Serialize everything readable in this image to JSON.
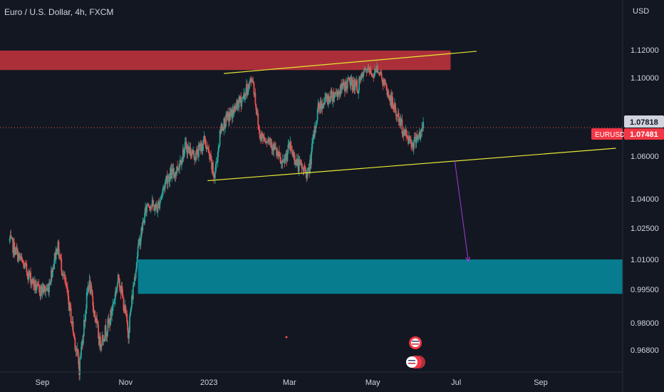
{
  "chart_data": {
    "type": "candlestick",
    "title": "Euro / U.S. Dollar, 4h, FXCM",
    "currency": "USD",
    "symbol": "EURUSD",
    "price_current": "1.07481",
    "price_prev": "1.07818",
    "y_ticks": [
      "1.12000",
      "1.10000",
      "1.06000",
      "1.04000",
      "1.02500",
      "1.01000",
      "0.99500",
      "0.98000",
      "0.96800"
    ],
    "x_ticks": [
      "Sep",
      "Nov",
      "2023",
      "Mar",
      "May",
      "Jul",
      "Sep"
    ],
    "ylim": [
      0.955,
      1.13
    ],
    "colors": {
      "up": "#26a69a",
      "down": "#ef5350",
      "resistance": "#b2303a",
      "target": "#087c8f",
      "trendline": "#e5e833",
      "arrow": "#a23bd6"
    },
    "price_path": [
      [
        "2022-08-08",
        1.019
      ],
      [
        "2022-08-20",
        1.005
      ],
      [
        "2022-08-28",
        0.995
      ],
      [
        "2022-09-05",
        0.995
      ],
      [
        "2022-09-12",
        1.017
      ],
      [
        "2022-09-20",
        0.99
      ],
      [
        "2022-09-28",
        0.96
      ],
      [
        "2022-10-05",
        0.999
      ],
      [
        "2022-10-13",
        0.971
      ],
      [
        "2022-10-20",
        0.98
      ],
      [
        "2022-10-27",
        1.001
      ],
      [
        "2022-11-03",
        0.976
      ],
      [
        "2022-11-10",
        1.015
      ],
      [
        "2022-11-17",
        1.038
      ],
      [
        "2022-11-24",
        1.035
      ],
      [
        "2022-12-01",
        1.05
      ],
      [
        "2022-12-08",
        1.053
      ],
      [
        "2022-12-15",
        1.065
      ],
      [
        "2022-12-22",
        1.06
      ],
      [
        "2022-12-29",
        1.068
      ],
      [
        "2023-01-05",
        1.05
      ],
      [
        "2023-01-10",
        1.075
      ],
      [
        "2023-01-18",
        1.082
      ],
      [
        "2023-01-26",
        1.09
      ],
      [
        "2023-02-02",
        1.1
      ],
      [
        "2023-02-07",
        1.071
      ],
      [
        "2023-02-15",
        1.068
      ],
      [
        "2023-02-24",
        1.055
      ],
      [
        "2023-03-01",
        1.065
      ],
      [
        "2023-03-07",
        1.056
      ],
      [
        "2023-03-15",
        1.052
      ],
      [
        "2023-03-22",
        1.085
      ],
      [
        "2023-03-30",
        1.09
      ],
      [
        "2023-04-06",
        1.093
      ],
      [
        "2023-04-14",
        1.098
      ],
      [
        "2023-04-20",
        1.095
      ],
      [
        "2023-04-26",
        1.106
      ],
      [
        "2023-05-02",
        1.102
      ],
      [
        "2023-05-04",
        1.108
      ],
      [
        "2023-05-10",
        1.095
      ],
      [
        "2023-05-17",
        1.084
      ],
      [
        "2023-05-24",
        1.072
      ],
      [
        "2023-05-31",
        1.066
      ],
      [
        "2023-06-02",
        1.071
      ],
      [
        "2023-06-05",
        1.07
      ],
      [
        "2023-06-07",
        1.076
      ]
    ],
    "zones": [
      {
        "name": "resistance",
        "start": "2022-08-01",
        "end": "2023-06-27",
        "low": 1.1055,
        "high": 1.1195
      },
      {
        "name": "target",
        "start": "2022-11-10",
        "end": "2023-10-31",
        "low": 0.993,
        "high": 1.01
      }
    ],
    "trendlines": [
      {
        "name": "upper",
        "x1": "2023-01-12",
        "y1": 1.103,
        "x2": "2023-07-16",
        "y2": 1.119
      },
      {
        "name": "lower",
        "x1": "2022-12-31",
        "y1": 1.0485,
        "x2": "2023-10-26",
        "y2": 1.064
      }
    ],
    "arrow": {
      "x1": "2023-06-30",
      "y1": 1.058,
      "x2": "2023-07-10",
      "y2": 1.009
    },
    "dates_for_ticks": [
      "2022-09-01",
      "2022-11-01",
      "2023-01-01",
      "2023-03-01",
      "2023-05-01",
      "2023-07-01",
      "2023-09-01"
    ]
  }
}
